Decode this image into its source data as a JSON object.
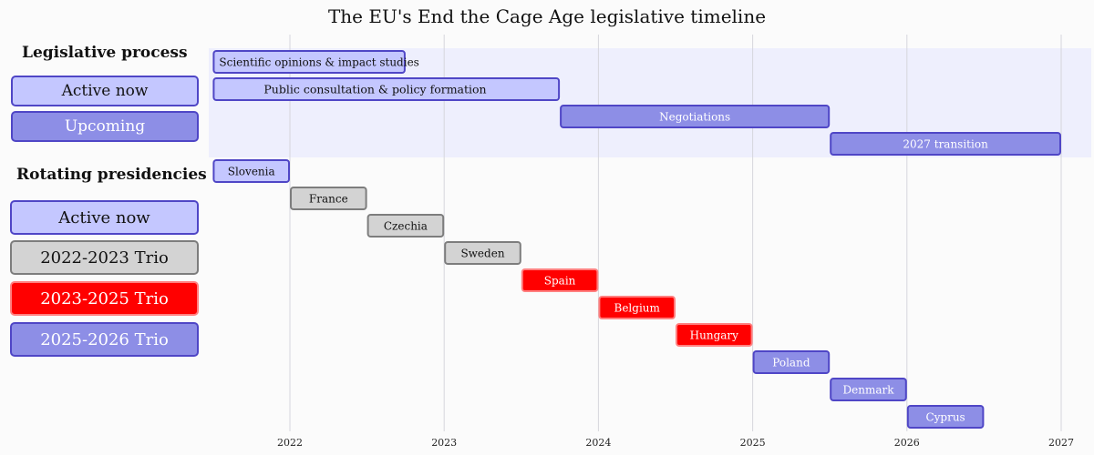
{
  "chart_data": {
    "type": "gantt",
    "title": "The EU's End the Cage Age legislative timeline",
    "x_ticks": [
      "2022",
      "2023",
      "2024",
      "2025",
      "2026",
      "2027"
    ],
    "xlim": [
      2021.5,
      2027.2
    ],
    "styles": {
      "active": {
        "fill": "#c4c7ff",
        "stroke": "#4f46c6",
        "text": "#111111"
      },
      "upcoming": {
        "fill": "#8d8ee6",
        "stroke": "#4f46c6",
        "text": "#ffffff"
      },
      "trio2022": {
        "fill": "#d3d3d3",
        "stroke": "#7d7d7d",
        "text": "#111111"
      },
      "trio2023": {
        "fill": "#ff0000",
        "stroke": "#ff8080",
        "text": "#ffffff"
      },
      "trio2025": {
        "fill": "#8d8ee6",
        "stroke": "#4f46c6",
        "text": "#ffffff"
      }
    },
    "legislative_tasks": [
      {
        "label": "Scientific opinions & impact studies",
        "start": 2021.5,
        "end": 2022.75,
        "style": "active"
      },
      {
        "label": "Public consultation & policy formation",
        "start": 2021.5,
        "end": 2023.75,
        "style": "active"
      },
      {
        "label": "Negotiations",
        "start": 2023.75,
        "end": 2025.5,
        "style": "upcoming"
      },
      {
        "label": "2027 transition",
        "start": 2025.5,
        "end": 2027.0,
        "style": "upcoming"
      }
    ],
    "presidencies": [
      {
        "label": "Slovenia",
        "start": 2021.5,
        "end": 2022.0,
        "style": "active"
      },
      {
        "label": "France",
        "start": 2022.0,
        "end": 2022.5,
        "style": "trio2022"
      },
      {
        "label": "Czechia",
        "start": 2022.5,
        "end": 2023.0,
        "style": "trio2022"
      },
      {
        "label": "Sweden",
        "start": 2023.0,
        "end": 2023.5,
        "style": "trio2022"
      },
      {
        "label": "Spain",
        "start": 2023.5,
        "end": 2024.0,
        "style": "trio2023"
      },
      {
        "label": "Belgium",
        "start": 2024.0,
        "end": 2024.5,
        "style": "trio2023"
      },
      {
        "label": "Hungary",
        "start": 2024.5,
        "end": 2025.0,
        "style": "trio2023"
      },
      {
        "label": "Poland",
        "start": 2025.0,
        "end": 2025.5,
        "style": "trio2025"
      },
      {
        "label": "Denmark",
        "start": 2025.5,
        "end": 2026.0,
        "style": "trio2025"
      },
      {
        "label": "Cyprus",
        "start": 2026.0,
        "end": 2026.5,
        "style": "trio2025"
      }
    ]
  },
  "legend": {
    "process_title": "Legislative process",
    "process_items": [
      "Active now",
      "Upcoming"
    ],
    "presidencies_title": "Rotating presidencies",
    "presidency_items": [
      "Active now",
      "2022-2023 Trio",
      "2023-2025 Trio",
      "2025-2026 Trio"
    ]
  }
}
